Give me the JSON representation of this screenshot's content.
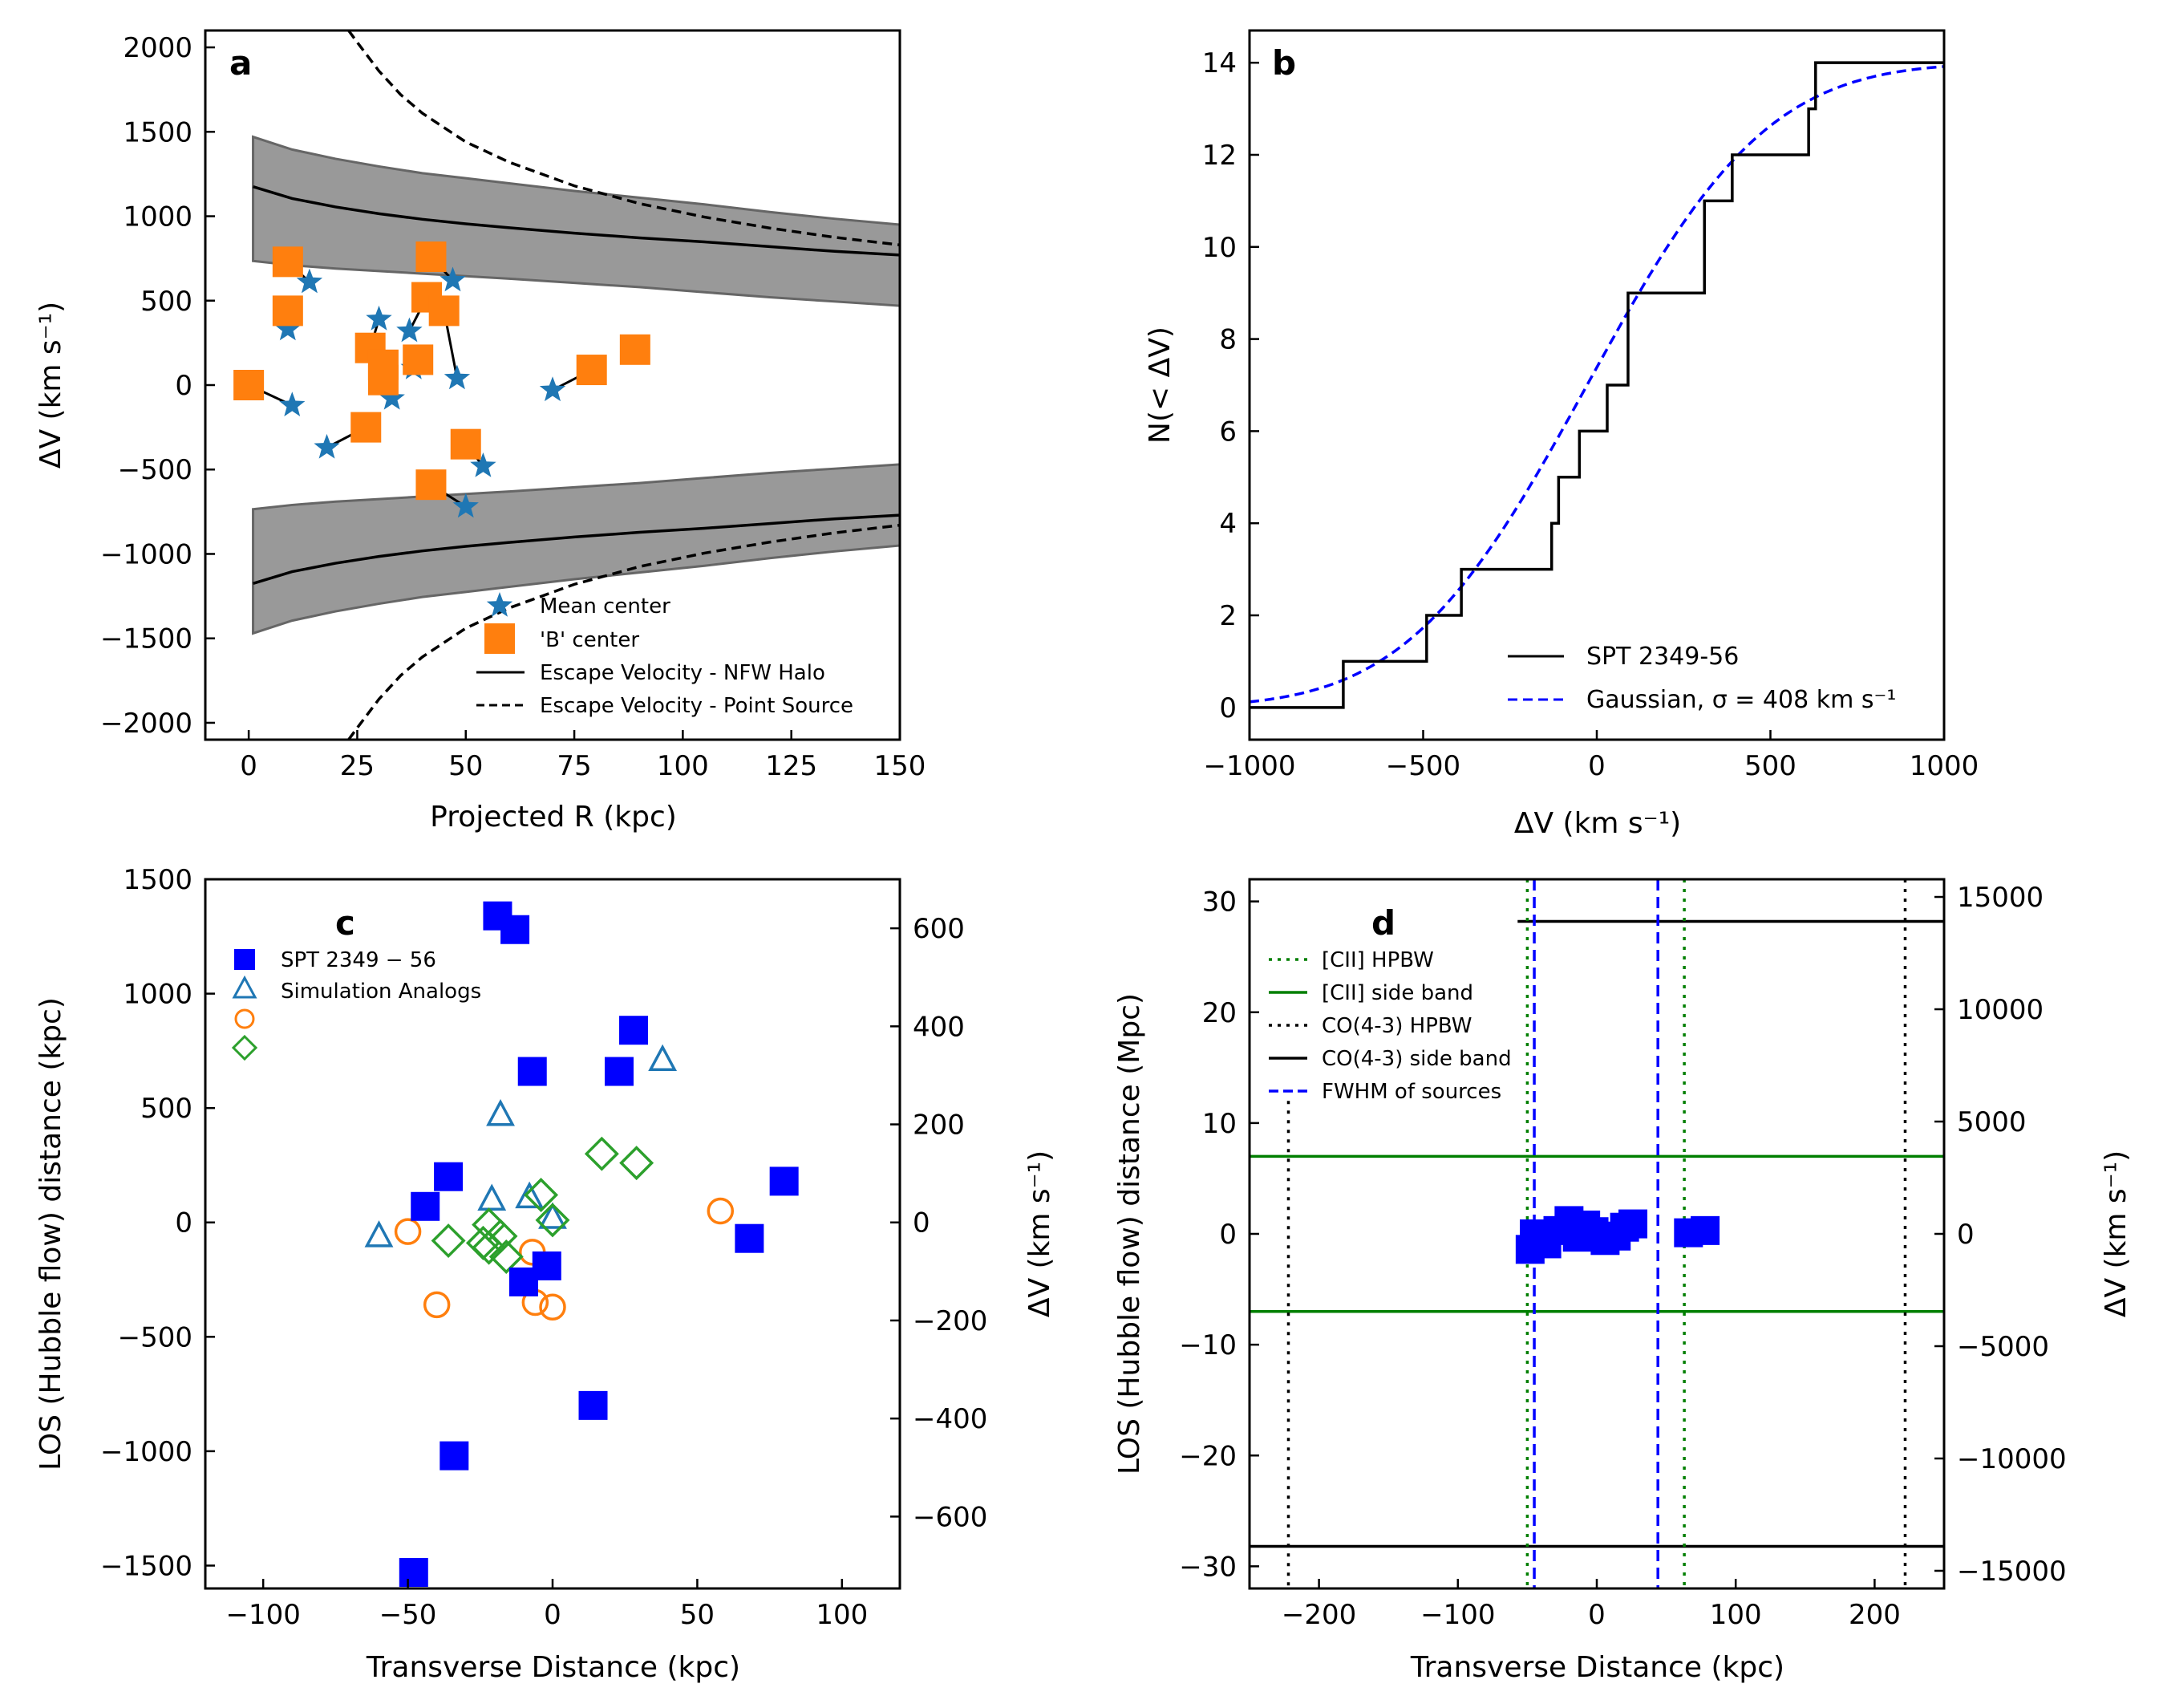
{
  "colors": {
    "star": "#1f77b4",
    "orange": "#ff7f0e",
    "green": "#2ca02c",
    "blue": "#0000ff",
    "band_fill": "#999999",
    "band_edge": "#666666",
    "dark_green": "#007f00"
  },
  "chart_data": [
    {
      "type": "scatter",
      "panel": "a",
      "title": "",
      "xlabel": "Projected R (kpc)",
      "ylabel": "ΔV (km s⁻¹)",
      "xlim": [
        -10,
        150
      ],
      "ylim": [
        -2100,
        2100
      ],
      "xticks": [
        0,
        25,
        50,
        75,
        100,
        125,
        150
      ],
      "yticks": [
        -2000,
        -1500,
        -1000,
        -500,
        0,
        500,
        1000,
        1500,
        2000
      ],
      "xtick_labels": [
        "0",
        "25",
        "50",
        "75",
        "100",
        "125",
        "150"
      ],
      "ytick_labels": [
        "−2000",
        "−1500",
        "−1000",
        "−500",
        "0",
        "500",
        "1000",
        "1500",
        "2000"
      ],
      "legend_position": "lower-right",
      "legend": [
        "Mean center",
        "'B' center",
        "Escape Velocity - NFW Halo",
        "Escape Velocity - Point Source"
      ],
      "series": [
        {
          "name": "Mean center",
          "marker": "star",
          "x": [
            9,
            14,
            10,
            18,
            30,
            33,
            37,
            38,
            47,
            48,
            54,
            50,
            70
          ],
          "y": [
            330,
            610,
            -120,
            -370,
            390,
            -80,
            320,
            100,
            620,
            40,
            -480,
            -720,
            -30
          ]
        },
        {
          "name": "'B' center",
          "marker": "square",
          "x": [
            0,
            9,
            9,
            27,
            28,
            31,
            31,
            39,
            41,
            42,
            45,
            50,
            42,
            79,
            89
          ],
          "y": [
            0,
            730,
            440,
            -250,
            220,
            120,
            30,
            150,
            520,
            760,
            440,
            -350,
            -590,
            90,
            210
          ]
        },
        {
          "name": "Escape Velocity - NFW Halo",
          "line": "solid",
          "x": [
            1,
            10,
            20,
            30,
            40,
            50,
            60,
            75,
            90,
            105,
            120,
            135,
            150
          ],
          "y": [
            1175,
            1105,
            1055,
            1015,
            982,
            955,
            932,
            900,
            872,
            848,
            820,
            792,
            770
          ]
        },
        {
          "name": "NFW band upper",
          "x": [
            1,
            10,
            20,
            30,
            40,
            50,
            60,
            75,
            90,
            105,
            120,
            135,
            150
          ],
          "y": [
            1470,
            1395,
            1340,
            1295,
            1255,
            1225,
            1195,
            1150,
            1110,
            1070,
            1025,
            985,
            950
          ]
        },
        {
          "name": "NFW band lower",
          "x": [
            1,
            10,
            20,
            30,
            40,
            50,
            60,
            75,
            90,
            105,
            120,
            135,
            150
          ],
          "y": [
            735,
            710,
            690,
            675,
            660,
            645,
            630,
            605,
            580,
            550,
            520,
            495,
            470
          ]
        },
        {
          "name": "Escape Velocity - Point Source",
          "line": "dashed",
          "x": [
            23,
            25,
            30,
            35,
            40,
            50,
            60,
            75,
            90,
            105,
            120,
            135,
            150
          ],
          "y": [
            2100,
            2030,
            1860,
            1720,
            1610,
            1440,
            1320,
            1180,
            1075,
            995,
            930,
            875,
            830
          ]
        }
      ]
    },
    {
      "type": "line",
      "panel": "b",
      "title": "",
      "xlabel": "ΔV (km s⁻¹)",
      "ylabel": "N(< ΔV)",
      "xlim": [
        -1000,
        1000
      ],
      "ylim": [
        -0.7,
        14.7
      ],
      "xticks": [
        -1000,
        -500,
        0,
        500,
        1000
      ],
      "yticks": [
        0,
        2,
        4,
        6,
        8,
        10,
        12,
        14
      ],
      "xtick_labels": [
        "−1000",
        "−500",
        "0",
        "500",
        "1000"
      ],
      "ytick_labels": [
        "0",
        "2",
        "4",
        "6",
        "8",
        "10",
        "12",
        "14"
      ],
      "legend_position": "lower-right",
      "legend": [
        "SPT 2349-56",
        "Gaussian, σ = 408 km s⁻¹"
      ],
      "series": [
        {
          "name": "SPT 2349-56",
          "line": "step",
          "x": [
            -1000,
            -730,
            -490,
            -390,
            -130,
            -110,
            -50,
            30,
            90,
            310,
            390,
            610,
            630,
            1000
          ],
          "y": [
            0,
            1,
            2,
            3,
            4,
            5,
            6,
            7,
            9,
            11,
            12,
            13,
            14,
            14
          ]
        },
        {
          "name": "Gaussian, σ = 408 km s⁻¹",
          "line": "dashed",
          "sigma": 408,
          "mu": -28,
          "scale": 14
        }
      ]
    },
    {
      "type": "scatter",
      "panel": "c",
      "title": "",
      "xlabel": "Transverse Distance (kpc)",
      "ylabel": "LOS (Hubble flow) distance (kpc)",
      "ylabel_right": "ΔV (km s⁻¹)",
      "xlim": [
        -120,
        120
      ],
      "ylim": [
        -1600,
        1500
      ],
      "xticks": [
        -100,
        -50,
        0,
        50,
        100
      ],
      "yticks": [
        -1500,
        -1000,
        -500,
        0,
        500,
        1000,
        1500
      ],
      "xtick_labels": [
        "−100",
        "−50",
        "0",
        "50",
        "100"
      ],
      "ytick_labels": [
        "−1500",
        "−1000",
        "−500",
        "0",
        "500",
        "1000",
        "1500"
      ],
      "yticks_right": [
        600,
        400,
        200,
        0,
        -200,
        -400,
        -600
      ],
      "ytick_labels_right": [
        "600",
        "400",
        "200",
        "0",
        "−200",
        "−400",
        "−600"
      ],
      "legend_position": "top-left",
      "legend": [
        "SPT 2349 − 56",
        "Simulation Analogs",
        "",
        ""
      ],
      "series": [
        {
          "name": "SPT 2349 − 56",
          "marker": "square",
          "x": [
            -19,
            -13,
            -7,
            23,
            28,
            80,
            68,
            -36,
            -44,
            -10,
            -2,
            14,
            -34,
            -48
          ],
          "y": [
            1340,
            1280,
            660,
            660,
            840,
            180,
            -70,
            200,
            70,
            -260,
            -190,
            -800,
            -1020,
            -1530
          ]
        },
        {
          "name": "Simulation Analogs",
          "marker": "triangle",
          "x": [
            38,
            -18,
            -21,
            -60,
            -8,
            0
          ],
          "y": [
            710,
            470,
            100,
            -60,
            110,
            20
          ]
        },
        {
          "name": "",
          "marker": "circle",
          "x": [
            -50,
            -40,
            -6,
            0,
            58,
            -7
          ],
          "y": [
            -40,
            -360,
            -350,
            -370,
            50,
            -130
          ]
        },
        {
          "name": "",
          "marker": "diamond",
          "x": [
            17,
            29,
            -4,
            0,
            -22,
            -18,
            -36,
            -24,
            -16,
            -22
          ],
          "y": [
            300,
            260,
            120,
            10,
            -10,
            -60,
            -80,
            -90,
            -150,
            -110
          ]
        }
      ]
    },
    {
      "type": "scatter",
      "panel": "d",
      "title": "",
      "xlabel": "Transverse Distance (kpc)",
      "ylabel": "LOS (Hubble flow) distance (Mpc)",
      "ylabel_right": "ΔV (km s⁻¹)",
      "xlim": [
        -250,
        250
      ],
      "ylim": [
        -32,
        32
      ],
      "xticks": [
        -200,
        -100,
        0,
        100,
        200
      ],
      "yticks": [
        -30,
        -20,
        -10,
        0,
        10,
        20,
        30
      ],
      "xtick_labels": [
        "−200",
        "−100",
        "0",
        "100",
        "200"
      ],
      "ytick_labels": [
        "−30",
        "−20",
        "−10",
        "0",
        "10",
        "20",
        "30"
      ],
      "yticks_right": [
        15000,
        10000,
        5000,
        0,
        -5000,
        -10000,
        -15000
      ],
      "ytick_labels_right": [
        "15000",
        "10000",
        "5000",
        "0",
        "−5000",
        "−10000",
        "−15000"
      ],
      "legend_position": "top-left",
      "legend": [
        "[CII] HPBW",
        "[CII] side band",
        "CO(4-3) HPBW",
        "CO(4-3) side band",
        "FWHM of sources"
      ],
      "series": [
        {
          "name": "SPT 2349-56 sources",
          "marker": "square",
          "x": [
            -48,
            -45,
            -36,
            -28,
            -20,
            -14,
            -8,
            -2,
            6,
            14,
            20,
            26,
            66,
            78
          ],
          "y": [
            -1.4,
            0,
            -0.9,
            0.3,
            1.2,
            -0.3,
            0.8,
            0.2,
            -0.6,
            -0.2,
            0.6,
            0.9,
            0.1,
            0.3
          ]
        },
        {
          "name": "[CII] HPBW",
          "line": "dotted",
          "x_positions": [
            -50,
            63
          ]
        },
        {
          "name": "[CII] side band",
          "line": "solid",
          "y_positions": [
            7,
            -7
          ]
        },
        {
          "name": "CO(4-3) HPBW",
          "line": "dotted",
          "x_positions": [
            -222,
            222
          ],
          "y_range": [
            -32,
            12
          ]
        },
        {
          "name": "CO(4-3) side band",
          "line": "solid",
          "y_positions": [
            28.2,
            -28.2
          ],
          "upper_x_range": [
            -57,
            250
          ]
        },
        {
          "name": "FWHM of sources",
          "line": "dashed",
          "x_positions": [
            -45,
            44
          ]
        }
      ]
    }
  ],
  "panels": {
    "a": {
      "letter": "a"
    },
    "b": {
      "letter": "b"
    },
    "c": {
      "letter": "c"
    },
    "d": {
      "letter": "d"
    }
  }
}
